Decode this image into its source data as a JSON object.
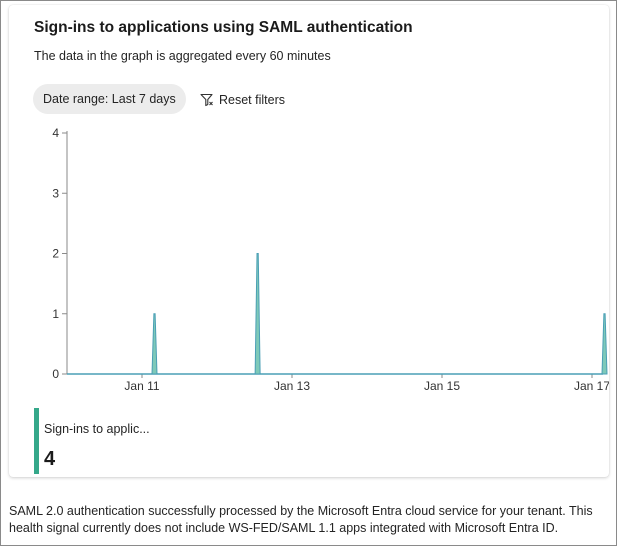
{
  "card": {
    "title": "Sign-ins to applications using SAML authentication",
    "subtitle": "The data in the graph is aggregated every 60 minutes",
    "date_range_label": "Date range: Last 7 days",
    "reset_filters_label": "Reset filters"
  },
  "legend": {
    "label": "Sign-ins to applic...",
    "value": "4",
    "color": "#35a88a"
  },
  "footer": {
    "text": "SAML 2.0 authentication successfully processed by the Microsoft Entra cloud service for your tenant. This health signal currently does not include WS-FED/SAML 1.1 apps integrated with Microsoft Entra ID."
  },
  "chart_data": {
    "type": "area",
    "title": "",
    "xlabel": "",
    "ylabel": "",
    "ylim": [
      0,
      4
    ],
    "yticks": [
      "0",
      "1",
      "2",
      "3",
      "4"
    ],
    "xticks": [
      "Jan 11",
      "Jan 13",
      "Jan 15",
      "Jan 17"
    ],
    "xlim_days": [
      10.0,
      17.2
    ],
    "series": [
      {
        "color": "#4a9fb5",
        "fill": "#7ec9b9",
        "points": [
          {
            "x": "Jan 11 04:00",
            "y": 1
          },
          {
            "x": "Jan 12 13:00",
            "y": 2
          },
          {
            "x": "Jan 17 04:00",
            "y": 1
          }
        ]
      }
    ],
    "grid": false,
    "legend_position": "bottom-left"
  }
}
